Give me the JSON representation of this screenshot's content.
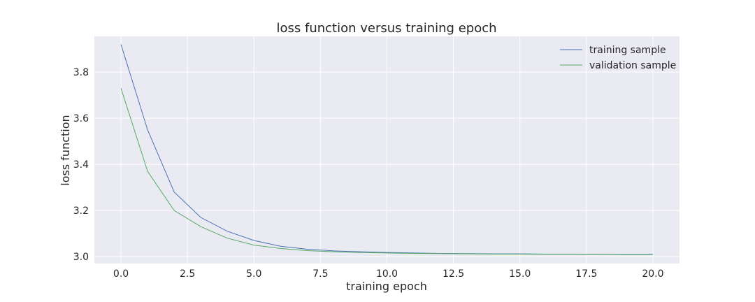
{
  "chart_data": {
    "type": "line",
    "title": "loss function versus training epoch",
    "xlabel": "training epoch",
    "ylabel": "loss function",
    "xlim": [
      -1.0,
      21.0
    ],
    "ylim": [
      2.97,
      3.955
    ],
    "xticks": [
      0.0,
      2.5,
      5.0,
      7.5,
      10.0,
      12.5,
      15.0,
      17.5,
      20.0
    ],
    "xtick_labels": [
      "0.0",
      "2.5",
      "5.0",
      "7.5",
      "10.0",
      "12.5",
      "15.0",
      "17.5",
      "20.0"
    ],
    "yticks": [
      3.0,
      3.2,
      3.4,
      3.6,
      3.8
    ],
    "ytick_labels": [
      "3.0",
      "3.2",
      "3.4",
      "3.6",
      "3.8"
    ],
    "grid": true,
    "legend_position": "top-right",
    "x": [
      0,
      1,
      2,
      3,
      4,
      5,
      6,
      7,
      8,
      9,
      10,
      11,
      12,
      13,
      14,
      15,
      16,
      17,
      18,
      19,
      20
    ],
    "series": [
      {
        "name": "training sample",
        "color": "#4c72b0",
        "values": [
          3.92,
          3.55,
          3.28,
          3.17,
          3.11,
          3.07,
          3.045,
          3.032,
          3.025,
          3.021,
          3.018,
          3.016,
          3.014,
          3.013,
          3.012,
          3.012,
          3.011,
          3.011,
          3.01,
          3.01,
          3.01
        ]
      },
      {
        "name": "validation sample",
        "color": "#55a868",
        "values": [
          3.73,
          3.37,
          3.2,
          3.13,
          3.08,
          3.05,
          3.035,
          3.026,
          3.021,
          3.018,
          3.016,
          3.014,
          3.013,
          3.012,
          3.011,
          3.011,
          3.01,
          3.01,
          3.01,
          3.009,
          3.009
        ]
      }
    ]
  },
  "colors": {
    "plot_background": "#eaeaf2",
    "grid": "#ffffff",
    "text": "#262626"
  }
}
